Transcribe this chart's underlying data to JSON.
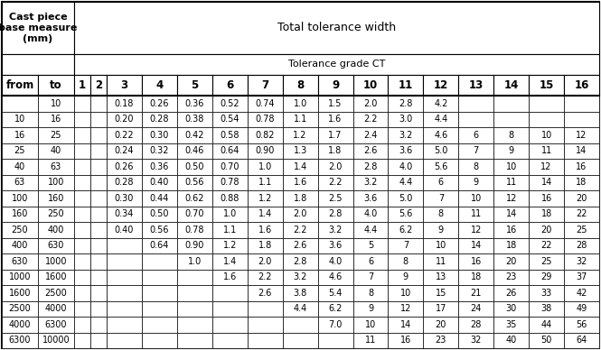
{
  "title_left": "Cast piece\nbase measure\n(mm)",
  "title_right1": "Total tolerance width",
  "title_right2": "Tolerance grade CT",
  "col_headers": [
    "1",
    "2",
    "3",
    "4",
    "5",
    "6",
    "7",
    "8",
    "9",
    "10",
    "11",
    "12",
    "13",
    "14",
    "15",
    "16"
  ],
  "row_headers_from": [
    "",
    "10",
    "16",
    "25",
    "40",
    "63",
    "100",
    "160",
    "250",
    "400",
    "630",
    "1000",
    "1600",
    "2500",
    "4000",
    "6300"
  ],
  "row_headers_to": [
    "10",
    "16",
    "25",
    "40",
    "63",
    "100",
    "160",
    "250",
    "400",
    "630",
    "1000",
    "1600",
    "2500",
    "4000",
    "6300",
    "10000"
  ],
  "table_data": [
    [
      "",
      "",
      "0.18",
      "0.26",
      "0.36",
      "0.52",
      "0.74",
      "1.0",
      "1.5",
      "2.0",
      "2.8",
      "4.2",
      "",
      "",
      "",
      ""
    ],
    [
      "",
      "",
      "0.20",
      "0.28",
      "0.38",
      "0.54",
      "0.78",
      "1.1",
      "1.6",
      "2.2",
      "3.0",
      "4.4",
      "",
      "",
      "",
      ""
    ],
    [
      "",
      "",
      "0.22",
      "0.30",
      "0.42",
      "0.58",
      "0.82",
      "1.2",
      "1.7",
      "2.4",
      "3.2",
      "4.6",
      "6",
      "8",
      "10",
      "12"
    ],
    [
      "",
      "",
      "0.24",
      "0.32",
      "0.46",
      "0.64",
      "0.90",
      "1.3",
      "1.8",
      "2.6",
      "3.6",
      "5.0",
      "7",
      "9",
      "11",
      "14"
    ],
    [
      "",
      "",
      "0.26",
      "0.36",
      "0.50",
      "0.70",
      "1.0",
      "1.4",
      "2.0",
      "2.8",
      "4.0",
      "5.6",
      "8",
      "10",
      "12",
      "16"
    ],
    [
      "",
      "",
      "0.28",
      "0.40",
      "0.56",
      "0.78",
      "1.1",
      "1.6",
      "2.2",
      "3.2",
      "4.4",
      "6",
      "9",
      "11",
      "14",
      "18"
    ],
    [
      "",
      "",
      "0.30",
      "0.44",
      "0.62",
      "0.88",
      "1.2",
      "1.8",
      "2.5",
      "3.6",
      "5.0",
      "7",
      "10",
      "12",
      "16",
      "20"
    ],
    [
      "",
      "",
      "0.34",
      "0.50",
      "0.70",
      "1.0",
      "1.4",
      "2.0",
      "2.8",
      "4.0",
      "5.6",
      "8",
      "11",
      "14",
      "18",
      "22"
    ],
    [
      "",
      "",
      "0.40",
      "0.56",
      "0.78",
      "1.1",
      "1.6",
      "2.2",
      "3.2",
      "4.4",
      "6.2",
      "9",
      "12",
      "16",
      "20",
      "25"
    ],
    [
      "",
      "",
      "",
      "0.64",
      "0.90",
      "1.2",
      "1.8",
      "2.6",
      "3.6",
      "5",
      "7",
      "10",
      "14",
      "18",
      "22",
      "28"
    ],
    [
      "",
      "",
      "",
      "",
      "1.0",
      "1.4",
      "2.0",
      "2.8",
      "4.0",
      "6",
      "8",
      "11",
      "16",
      "20",
      "25",
      "32"
    ],
    [
      "",
      "",
      "",
      "",
      "",
      "1.6",
      "2.2",
      "3.2",
      "4.6",
      "7",
      "9",
      "13",
      "18",
      "23",
      "29",
      "37"
    ],
    [
      "",
      "",
      "",
      "",
      "",
      "",
      "2.6",
      "3.8",
      "5.4",
      "8",
      "10",
      "15",
      "21",
      "26",
      "33",
      "42"
    ],
    [
      "",
      "",
      "",
      "",
      "",
      "",
      "",
      "4.4",
      "6.2",
      "9",
      "12",
      "17",
      "24",
      "30",
      "38",
      "49"
    ],
    [
      "",
      "",
      "",
      "",
      "",
      "",
      "",
      "",
      "7.0",
      "10",
      "14",
      "20",
      "28",
      "35",
      "44",
      "56"
    ],
    [
      "",
      "",
      "",
      "",
      "",
      "",
      "",
      "",
      "",
      "11",
      "16",
      "23",
      "32",
      "40",
      "50",
      "64"
    ]
  ],
  "bg_color": "#ffffff",
  "text_color": "#000000",
  "font_size": 7.0,
  "header_font_size": 8.0,
  "col_header_font_size": 8.5
}
